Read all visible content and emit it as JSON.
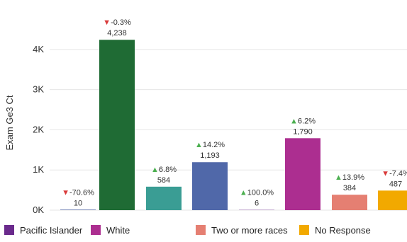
{
  "chart_data": {
    "type": "bar",
    "ylabel": "Exam Ge3 Ct",
    "xlabel": "",
    "ylim": [
      0,
      4700
    ],
    "yticks": [
      {
        "value": 0,
        "label": "0K"
      },
      {
        "value": 1000,
        "label": "1K"
      },
      {
        "value": 2000,
        "label": "2K"
      },
      {
        "value": 3000,
        "label": "3K"
      },
      {
        "value": 4000,
        "label": "4K"
      }
    ],
    "grid": true,
    "legend_position": "bottom",
    "bars": [
      {
        "value": 10,
        "label": "10",
        "change": "-70.6%",
        "direction": "down",
        "color": "#1f3a8a"
      },
      {
        "value": 4238,
        "label": "4,238",
        "change": "-0.3%",
        "direction": "down",
        "color": "#1f6b34"
      },
      {
        "value": 584,
        "label": "584",
        "change": "6.8%",
        "direction": "up",
        "color": "#3a9d94"
      },
      {
        "value": 1193,
        "label": "1,193",
        "change": "14.2%",
        "direction": "up",
        "color": "#5068a9"
      },
      {
        "value": 6,
        "label": "6",
        "change": "100.0%",
        "direction": "up",
        "color": "#6a2a8c"
      },
      {
        "value": 1790,
        "label": "1,790",
        "change": "6.2%",
        "direction": "up",
        "color": "#ac2e90"
      },
      {
        "value": 384,
        "label": "384",
        "change": "13.9%",
        "direction": "up",
        "color": "#e57f72"
      },
      {
        "value": 487,
        "label": "487",
        "change": "-7.4%",
        "direction": "down",
        "color": "#f2a900"
      }
    ],
    "legend": [
      {
        "name": "Pacific Islander",
        "color": "#6a2a8c"
      },
      {
        "name": "White",
        "color": "#ac2e90"
      },
      {
        "name": "Two or more races",
        "color": "#e57f72"
      },
      {
        "name": "No Response",
        "color": "#f2a900"
      }
    ]
  },
  "colors": {
    "up_arrow": "#4caf50",
    "down_arrow": "#d93a3a",
    "grid": "#e6e6e6",
    "text": "#333333"
  }
}
